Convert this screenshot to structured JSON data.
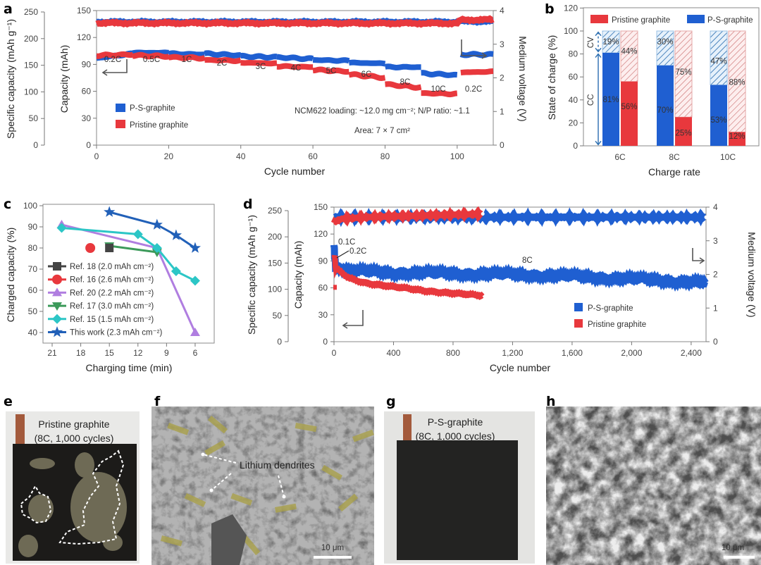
{
  "colors": {
    "ps": "#1f5fd1",
    "pristine": "#e8383d",
    "ref18": "#444444",
    "ref16": "#e8383d",
    "ref20": "#b07ee0",
    "ref17": "#3c9a5a",
    "ref15": "#2cc6c6",
    "thiswork": "#2160b8"
  },
  "panel_labels": [
    "a",
    "b",
    "c",
    "d",
    "e",
    "f",
    "g",
    "h"
  ],
  "chart_data": [
    {
      "panel": "a",
      "type": "line",
      "xlabel": "Cycle number",
      "ylabel": "Capacity (mAh)",
      "ylabel_left": "Specific capacity (mAh g⁻¹)",
      "y2label": "Medium voltage (V)",
      "xlim": [
        0,
        110
      ],
      "ylim": [
        0,
        150
      ],
      "ylim_left": [
        0,
        250
      ],
      "y2lim": [
        0,
        4
      ],
      "xticks": [
        "0",
        "20",
        "40",
        "60",
        "80",
        "100"
      ],
      "yticks": [
        "0",
        "30",
        "60",
        "90",
        "120",
        "150"
      ],
      "yticks_left": [
        "0",
        "50",
        "100",
        "150",
        "200",
        "250"
      ],
      "y2ticks": [
        "0",
        "1",
        "2",
        "3",
        "4"
      ],
      "rate_labels": [
        "0.2C",
        "0.5C",
        "1C",
        "2C",
        "3C",
        "4C",
        "5C",
        "6C",
        "8C",
        "10C",
        "0.2C"
      ],
      "cycles_per_block": 10,
      "series": [
        {
          "name": "P-S-graphite",
          "capacity_blocks": [
            [
              97,
              102
            ],
            [
              103,
              103
            ],
            [
              102,
              101
            ],
            [
              102,
              100
            ],
            [
              99,
              98
            ],
            [
              98,
              96
            ],
            [
              95,
              94
            ],
            [
              92,
              91
            ],
            [
              87,
              87
            ],
            [
              80,
              78
            ],
            [
              101,
              101
            ]
          ],
          "voltage": [
            [
              0,
              3.67
            ],
            [
              110,
              3.67
            ]
          ]
        },
        {
          "name": "Pristine graphite",
          "capacity_blocks": [
            [
              100,
              101
            ],
            [
              100,
              99
            ],
            [
              98,
              97
            ],
            [
              95,
              94
            ],
            [
              92,
              91
            ],
            [
              88,
              87
            ],
            [
              84,
              82
            ],
            [
              79,
              75
            ],
            [
              68,
              64
            ],
            [
              58,
              57
            ],
            [
              81,
              82
            ]
          ],
          "voltage": [
            [
              0,
              3.63
            ],
            [
              100,
              3.62
            ],
            [
              101,
              3.72
            ],
            [
              110,
              3.73
            ]
          ]
        }
      ],
      "annotations": [
        "NCM622 loading: ~12.0 mg cm⁻²; N/P ratio: ~1.1",
        "Area: 7 × 7 cm²"
      ],
      "legend": "bottom-left"
    },
    {
      "panel": "b",
      "type": "bar",
      "xlabel": "Charge rate",
      "ylabel": "State of charge (%)",
      "ylim": [
        0,
        120
      ],
      "yticks": [
        "0",
        "20",
        "40",
        "60",
        "80",
        "100",
        "120"
      ],
      "categories": [
        "6C",
        "8C",
        "10C"
      ],
      "series": [
        {
          "name": "Pristine graphite",
          "cc": [
            56,
            25,
            12
          ],
          "cv": [
            44,
            75,
            88
          ],
          "cc_labels": [
            "56%",
            "25%",
            "12%"
          ],
          "cv_labels": [
            "44%",
            "75%",
            "88%"
          ]
        },
        {
          "name": "P-S-graphite",
          "cc": [
            81,
            70,
            53
          ],
          "cv": [
            19,
            30,
            47
          ],
          "cc_labels": [
            "81%",
            "70%",
            "53%"
          ],
          "cv_labels": [
            "19%",
            "30%",
            "47%"
          ]
        }
      ],
      "stack_labels": [
        "CV",
        "CC"
      ],
      "legend": "top"
    },
    {
      "panel": "c",
      "type": "line",
      "xlabel": "Charging time (min)",
      "ylabel": "Charged capacity (%)",
      "xlim": [
        24,
        3
      ],
      "ylim": [
        35,
        100
      ],
      "xticks": [
        "21",
        "18",
        "15",
        "12",
        "9",
        "6"
      ],
      "yticks": [
        "40",
        "50",
        "60",
        "70",
        "80",
        "90",
        "100"
      ],
      "series": [
        {
          "name": "Ref. 18 (2.0 mAh cm⁻²)",
          "marker": "square",
          "points": [
            [
              15,
              80
            ]
          ]
        },
        {
          "name": "Ref. 16 (2.6 mAh cm⁻²)",
          "marker": "circle",
          "points": [
            [
              17,
              80
            ]
          ]
        },
        {
          "name": "Ref. 20 (2.2 mAh cm⁻²)",
          "marker": "triangle-up",
          "points": [
            [
              20,
              91
            ],
            [
              10,
              80
            ],
            [
              6,
              40
            ]
          ]
        },
        {
          "name": "Ref. 17 (3.0 mAh cm⁻²)",
          "marker": "triangle-down",
          "points": [
            [
              15,
              81
            ],
            [
              10,
              78
            ]
          ]
        },
        {
          "name": "Ref. 15 (1.5 mAh cm⁻²)",
          "marker": "diamond",
          "points": [
            [
              20,
              89.5
            ],
            [
              12,
              86.5
            ],
            [
              10,
              80
            ],
            [
              8,
              69
            ],
            [
              6,
              64.5
            ]
          ]
        },
        {
          "name": "This work (2.3 mAh cm⁻²)",
          "marker": "star",
          "points": [
            [
              15,
              97
            ],
            [
              10,
              91
            ],
            [
              8,
              86
            ],
            [
              6,
              80
            ]
          ]
        }
      ],
      "legend": "bottom-left"
    },
    {
      "panel": "d",
      "type": "line",
      "xlabel": "Cycle number",
      "ylabel": "Capacity (mAh)",
      "ylabel_left": "Specific capacity (mAh g⁻¹)",
      "y2label": "Medium voltage (V)",
      "xlim": [
        0,
        2500
      ],
      "ylim": [
        0,
        150
      ],
      "ylim_left": [
        0,
        250
      ],
      "y2lim": [
        0,
        4
      ],
      "xticks": [
        "0",
        "400",
        "800",
        "1,200",
        "1,600",
        "2,000",
        "2,400"
      ],
      "yticks": [
        "0",
        "30",
        "60",
        "90",
        "120",
        "150"
      ],
      "yticks_left": [
        "0",
        "50",
        "100",
        "150",
        "200",
        "250"
      ],
      "y2ticks": [
        "0",
        "1",
        "2",
        "3",
        "4"
      ],
      "rate_labels": [
        "0.1C",
        "0.2C",
        "8C"
      ],
      "series": [
        {
          "name": "P-S-graphite",
          "capacity": [
            [
              0,
              106
            ],
            [
              3,
              104
            ],
            [
              4,
              93
            ],
            [
              8,
              93
            ],
            [
              10,
              84
            ],
            [
              100,
              79
            ],
            [
              400,
              77
            ],
            [
              800,
              76
            ],
            [
              1200,
              75
            ],
            [
              1600,
              73
            ],
            [
              2000,
              70
            ],
            [
              2500,
              66
            ]
          ],
          "voltage": [
            [
              0,
              3.7
            ],
            [
              2500,
              3.7
            ]
          ]
        },
        {
          "name": "Pristine graphite",
          "capacity": [
            [
              2,
              96
            ],
            [
              6,
              95
            ],
            [
              10,
              82
            ],
            [
              100,
              71
            ],
            [
              200,
              66
            ],
            [
              400,
              61
            ],
            [
              600,
              57
            ],
            [
              800,
              54
            ],
            [
              1000,
              51
            ]
          ],
          "voltage": [
            [
              0,
              3.55
            ],
            [
              50,
              3.65
            ],
            [
              200,
              3.7
            ],
            [
              1000,
              3.8
            ]
          ]
        }
      ],
      "legend": "bottom-right"
    }
  ],
  "photos": {
    "e": {
      "title": "Pristine graphite",
      "subtitle": "(8C, 1,000 cycles)"
    },
    "f": {
      "annotation": "Lithium dendrites",
      "scale_bar": "10 μm"
    },
    "g": {
      "title": "P-S-graphite",
      "subtitle": "(8C, 1,000 cycles)"
    },
    "h": {
      "scale_bar": "10 μm"
    }
  }
}
